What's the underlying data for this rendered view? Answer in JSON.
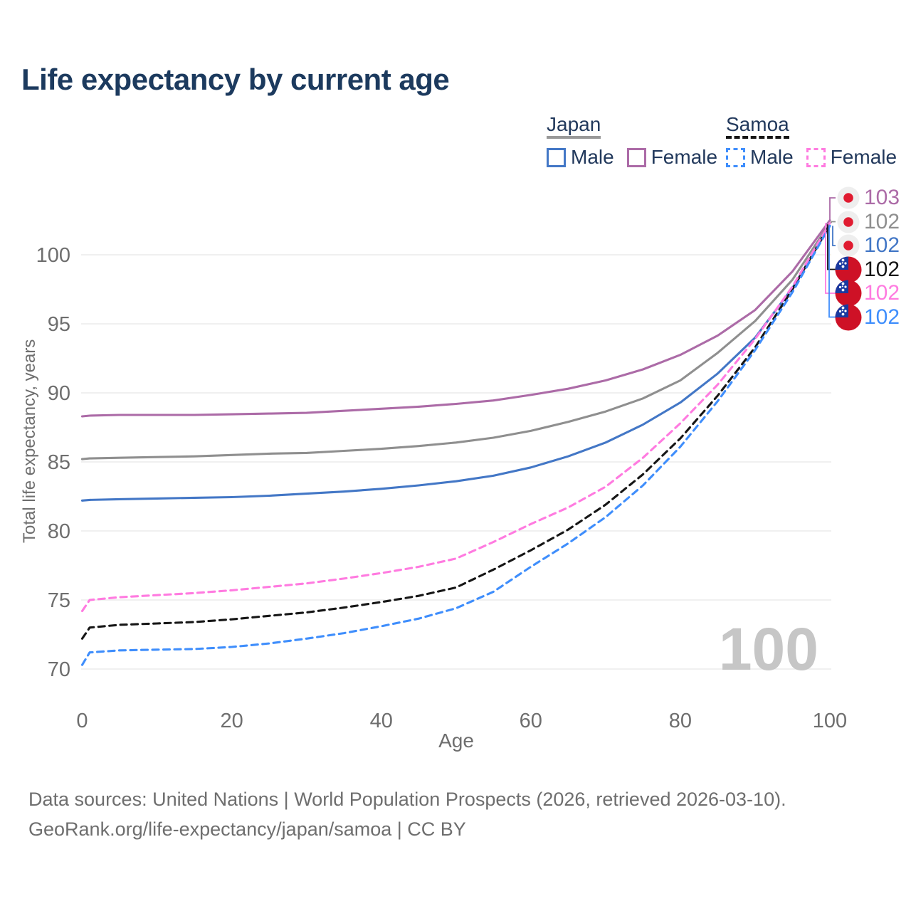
{
  "title": "Life expectancy by current age",
  "legend": {
    "groups": [
      {
        "name": "Japan",
        "underline_style": "solid",
        "items": [
          {
            "label": "Male"
          },
          {
            "label": "Female"
          }
        ]
      },
      {
        "name": "Samoa",
        "underline_style": "dashed",
        "items": [
          {
            "label": "Male"
          },
          {
            "label": "Female"
          }
        ]
      }
    ]
  },
  "watermark_age": "100",
  "footer": {
    "line1": "Data sources: United Nations | World Population Prospects (2026, retrieved 2026-03-10).",
    "line2": "GeoRank.org/life-expectancy/japan/samoa | CC BY"
  },
  "colors": {
    "title_text": "#1c3a5e",
    "legend_text": "#22395c",
    "axis_text": "#6e6e6e",
    "gridline": "#e7e7e7",
    "watermark": "#c6c6c6",
    "footer_text": "#6e6e6e",
    "japan_underline": "#999999",
    "samoa_underline": "#161616",
    "japan_flag_bg": "#eeeeee",
    "japan_flag_red": "#e01b30",
    "samoa_flag_red": "#ce1126",
    "samoa_flag_blue": "#1a3aa0"
  },
  "chart_data": {
    "type": "line",
    "title": "Life expectancy by current age",
    "xlabel": "Age",
    "ylabel": "Total life expectancy, years",
    "xlim": [
      0,
      100
    ],
    "ylim": [
      70,
      103
    ],
    "xticks": [
      0,
      20,
      40,
      60,
      80,
      100
    ],
    "yticks": [
      70,
      75,
      80,
      85,
      90,
      95,
      100
    ],
    "grid": "horizontal",
    "legend_position": "top-right",
    "x": [
      0,
      1,
      5,
      10,
      15,
      20,
      25,
      30,
      35,
      40,
      45,
      50,
      55,
      60,
      65,
      70,
      75,
      80,
      85,
      90,
      95,
      100
    ],
    "series": [
      {
        "name": "Japan Female",
        "country": "Japan",
        "sex": "Female",
        "style": "solid",
        "color": "#ac6ba7",
        "flag": "japan",
        "end_label": "103",
        "values": [
          88.3,
          88.35,
          88.4,
          88.4,
          88.4,
          88.45,
          88.5,
          88.55,
          88.7,
          88.85,
          89.0,
          89.2,
          89.45,
          89.85,
          90.3,
          90.9,
          91.7,
          92.75,
          94.15,
          96.0,
          98.8,
          102.5
        ]
      },
      {
        "name": "Japan Both sexes",
        "country": "Japan",
        "sex": "Both",
        "style": "solid",
        "color": "#8f8f8f",
        "flag": "japan",
        "end_label": "102",
        "values": [
          85.2,
          85.25,
          85.3,
          85.35,
          85.4,
          85.5,
          85.6,
          85.65,
          85.8,
          85.95,
          86.15,
          86.4,
          86.75,
          87.25,
          87.9,
          88.65,
          89.6,
          90.9,
          92.9,
          95.2,
          98.2,
          102.3
        ]
      },
      {
        "name": "Japan Male",
        "country": "Japan",
        "sex": "Male",
        "style": "solid",
        "color": "#4377c6",
        "flag": "japan",
        "end_label": "102",
        "values": [
          82.2,
          82.25,
          82.3,
          82.35,
          82.4,
          82.45,
          82.55,
          82.7,
          82.85,
          83.05,
          83.3,
          83.6,
          84.0,
          84.6,
          85.4,
          86.4,
          87.7,
          89.3,
          91.4,
          94.0,
          97.6,
          102.1
        ]
      },
      {
        "name": "Samoa Both sexes",
        "country": "Samoa",
        "sex": "Both",
        "style": "dashed",
        "color": "#161616",
        "flag": "samoa",
        "end_label": "102",
        "values": [
          72.2,
          73.0,
          73.2,
          73.3,
          73.4,
          73.6,
          73.85,
          74.1,
          74.45,
          74.85,
          75.3,
          75.9,
          77.2,
          78.6,
          80.1,
          81.9,
          84.1,
          86.7,
          89.8,
          93.3,
          97.5,
          102.2
        ]
      },
      {
        "name": "Samoa Female",
        "country": "Samoa",
        "sex": "Female",
        "style": "dashed",
        "color": "#ff7be0",
        "flag": "samoa",
        "end_label": "102",
        "values": [
          74.2,
          75.0,
          75.2,
          75.35,
          75.5,
          75.7,
          75.95,
          76.2,
          76.55,
          76.95,
          77.4,
          78.0,
          79.2,
          80.5,
          81.7,
          83.2,
          85.3,
          87.8,
          90.6,
          93.9,
          97.7,
          102.3
        ]
      },
      {
        "name": "Samoa Male",
        "country": "Samoa",
        "sex": "Male",
        "style": "dashed",
        "color": "#3f8efc",
        "flag": "samoa",
        "end_label": "102",
        "values": [
          70.3,
          71.2,
          71.35,
          71.4,
          71.45,
          71.6,
          71.85,
          72.2,
          72.6,
          73.1,
          73.65,
          74.4,
          75.6,
          77.4,
          79.1,
          81.0,
          83.3,
          86.1,
          89.4,
          93.1,
          97.3,
          102.1
        ]
      }
    ]
  }
}
